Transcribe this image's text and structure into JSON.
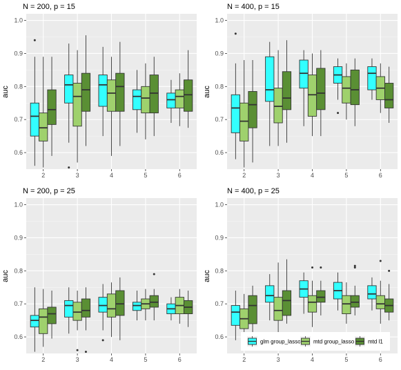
{
  "chart_data": [
    {
      "type": "boxplot",
      "title": "N = 200, p = 15",
      "ylabel": "auc",
      "ylim": [
        0.55,
        1.02
      ],
      "yticks": [
        0.6,
        0.7,
        0.8,
        0.9,
        1.0
      ],
      "categories": [
        "2",
        "3",
        "4",
        "5",
        "6"
      ],
      "series": [
        {
          "name": "glm group_lasso",
          "boxes": [
            {
              "whisker_low": 0.56,
              "q1": 0.65,
              "median": 0.71,
              "q3": 0.75,
              "whisker_high": 0.89,
              "outliers": [
                0.94
              ]
            },
            {
              "whisker_low": 0.63,
              "q1": 0.75,
              "median": 0.805,
              "q3": 0.835,
              "whisker_high": 0.93,
              "outliers": [
                0.555
              ]
            },
            {
              "whisker_low": 0.65,
              "q1": 0.74,
              "median": 0.805,
              "q3": 0.835,
              "whisker_high": 0.92,
              "outliers": []
            },
            {
              "whisker_low": 0.66,
              "q1": 0.73,
              "median": 0.77,
              "q3": 0.79,
              "whisker_high": 0.85,
              "outliers": []
            },
            {
              "whisker_low": 0.69,
              "q1": 0.735,
              "median": 0.76,
              "q3": 0.78,
              "whisker_high": 0.82,
              "outliers": []
            }
          ]
        },
        {
          "name": "mtd group_lasso",
          "boxes": [
            {
              "whisker_low": 0.555,
              "q1": 0.635,
              "median": 0.675,
              "q3": 0.72,
              "whisker_high": 0.89,
              "outliers": []
            },
            {
              "whisker_low": 0.57,
              "q1": 0.68,
              "median": 0.77,
              "q3": 0.81,
              "whisker_high": 0.91,
              "outliers": []
            },
            {
              "whisker_low": 0.59,
              "q1": 0.725,
              "median": 0.78,
              "q3": 0.82,
              "whisker_high": 0.89,
              "outliers": []
            },
            {
              "whisker_low": 0.64,
              "q1": 0.72,
              "median": 0.765,
              "q3": 0.8,
              "whisker_high": 0.87,
              "outliers": []
            },
            {
              "whisker_low": 0.68,
              "q1": 0.735,
              "median": 0.77,
              "q3": 0.79,
              "whisker_high": 0.84,
              "outliers": []
            }
          ]
        },
        {
          "name": "mtd l1",
          "boxes": [
            {
              "whisker_low": 0.59,
              "q1": 0.685,
              "median": 0.73,
              "q3": 0.79,
              "whisker_high": 0.89,
              "outliers": []
            },
            {
              "whisker_low": 0.62,
              "q1": 0.725,
              "median": 0.79,
              "q3": 0.84,
              "whisker_high": 0.955,
              "outliers": []
            },
            {
              "whisker_low": 0.62,
              "q1": 0.725,
              "median": 0.8,
              "q3": 0.84,
              "whisker_high": 0.935,
              "outliers": []
            },
            {
              "whisker_low": 0.65,
              "q1": 0.72,
              "median": 0.78,
              "q3": 0.835,
              "whisker_high": 0.89,
              "outliers": []
            },
            {
              "whisker_low": 0.675,
              "q1": 0.725,
              "median": 0.775,
              "q3": 0.82,
              "whisker_high": 0.91,
              "outliers": []
            }
          ]
        }
      ]
    },
    {
      "type": "boxplot",
      "title": "N = 400, p = 15",
      "ylabel": "auc",
      "ylim": [
        0.55,
        1.02
      ],
      "yticks": [
        0.6,
        0.7,
        0.8,
        0.9,
        1.0
      ],
      "categories": [
        "2",
        "3",
        "4",
        "5",
        "6"
      ],
      "series": [
        {
          "name": "glm group_lasso",
          "boxes": [
            {
              "whisker_low": 0.58,
              "q1": 0.66,
              "median": 0.735,
              "q3": 0.775,
              "whisker_high": 0.87,
              "outliers": [
                0.96
              ]
            },
            {
              "whisker_low": 0.62,
              "q1": 0.755,
              "median": 0.79,
              "q3": 0.89,
              "whisker_high": 0.935,
              "outliers": []
            },
            {
              "whisker_low": 0.68,
              "q1": 0.795,
              "median": 0.84,
              "q3": 0.88,
              "whisker_high": 0.91,
              "outliers": []
            },
            {
              "whisker_low": 0.76,
              "q1": 0.81,
              "median": 0.835,
              "q3": 0.86,
              "whisker_high": 0.885,
              "outliers": [
                0.72
              ]
            },
            {
              "whisker_low": 0.76,
              "q1": 0.79,
              "median": 0.84,
              "q3": 0.86,
              "whisker_high": 0.885,
              "outliers": []
            }
          ]
        },
        {
          "name": "mtd group_lasso",
          "boxes": [
            {
              "whisker_low": 0.555,
              "q1": 0.635,
              "median": 0.695,
              "q3": 0.75,
              "whisker_high": 0.88,
              "outliers": []
            },
            {
              "whisker_low": 0.62,
              "q1": 0.69,
              "median": 0.74,
              "q3": 0.795,
              "whisker_high": 0.91,
              "outliers": []
            },
            {
              "whisker_low": 0.65,
              "q1": 0.71,
              "median": 0.775,
              "q3": 0.835,
              "whisker_high": 0.9,
              "outliers": []
            },
            {
              "whisker_low": 0.7,
              "q1": 0.75,
              "median": 0.795,
              "q3": 0.83,
              "whisker_high": 0.87,
              "outliers": []
            },
            {
              "whisker_low": 0.72,
              "q1": 0.76,
              "median": 0.795,
              "q3": 0.83,
              "whisker_high": 0.87,
              "outliers": []
            }
          ]
        },
        {
          "name": "mtd l1",
          "boxes": [
            {
              "whisker_low": 0.57,
              "q1": 0.675,
              "median": 0.745,
              "q3": 0.785,
              "whisker_high": 0.88,
              "outliers": []
            },
            {
              "whisker_low": 0.63,
              "q1": 0.73,
              "median": 0.765,
              "q3": 0.845,
              "whisker_high": 0.94,
              "outliers": []
            },
            {
              "whisker_low": 0.65,
              "q1": 0.73,
              "median": 0.78,
              "q3": 0.855,
              "whisker_high": 0.91,
              "outliers": []
            },
            {
              "whisker_low": 0.68,
              "q1": 0.745,
              "median": 0.79,
              "q3": 0.85,
              "whisker_high": 0.885,
              "outliers": []
            },
            {
              "whisker_low": 0.69,
              "q1": 0.735,
              "median": 0.76,
              "q3": 0.81,
              "whisker_high": 0.86,
              "outliers": []
            }
          ]
        }
      ]
    },
    {
      "type": "boxplot",
      "title": "N = 200, p = 25",
      "ylabel": "auc",
      "ylim": [
        0.55,
        1.02
      ],
      "yticks": [
        0.6,
        0.7,
        0.8,
        0.9,
        1.0
      ],
      "categories": [
        "2",
        "3",
        "4",
        "5",
        "6"
      ],
      "series": [
        {
          "name": "glm group_lasso",
          "boxes": [
            {
              "whisker_low": 0.555,
              "q1": 0.63,
              "median": 0.65,
              "q3": 0.665,
              "whisker_high": 0.75,
              "outliers": []
            },
            {
              "whisker_low": 0.61,
              "q1": 0.66,
              "median": 0.695,
              "q3": 0.71,
              "whisker_high": 0.75,
              "outliers": []
            },
            {
              "whisker_low": 0.62,
              "q1": 0.675,
              "median": 0.695,
              "q3": 0.72,
              "whisker_high": 0.76,
              "outliers": [
                0.59
              ]
            },
            {
              "whisker_low": 0.65,
              "q1": 0.68,
              "median": 0.695,
              "q3": 0.705,
              "whisker_high": 0.74,
              "outliers": []
            },
            {
              "whisker_low": 0.65,
              "q1": 0.67,
              "median": 0.685,
              "q3": 0.7,
              "whisker_high": 0.72,
              "outliers": []
            }
          ]
        },
        {
          "name": "mtd group_lasso",
          "boxes": [
            {
              "whisker_low": 0.57,
              "q1": 0.61,
              "median": 0.66,
              "q3": 0.685,
              "whisker_high": 0.745,
              "outliers": []
            },
            {
              "whisker_low": 0.62,
              "q1": 0.65,
              "median": 0.675,
              "q3": 0.705,
              "whisker_high": 0.74,
              "outliers": [
                0.56
              ]
            },
            {
              "whisker_low": 0.6,
              "q1": 0.66,
              "median": 0.685,
              "q3": 0.73,
              "whisker_high": 0.765,
              "outliers": []
            },
            {
              "whisker_low": 0.65,
              "q1": 0.685,
              "median": 0.7,
              "q3": 0.715,
              "whisker_high": 0.745,
              "outliers": []
            },
            {
              "whisker_low": 0.64,
              "q1": 0.67,
              "median": 0.695,
              "q3": 0.72,
              "whisker_high": 0.745,
              "outliers": []
            }
          ]
        },
        {
          "name": "mtd l1",
          "boxes": [
            {
              "whisker_low": 0.595,
              "q1": 0.64,
              "median": 0.67,
              "q3": 0.69,
              "whisker_high": 0.74,
              "outliers": []
            },
            {
              "whisker_low": 0.62,
              "q1": 0.66,
              "median": 0.68,
              "q3": 0.715,
              "whisker_high": 0.75,
              "outliers": [
                0.555
              ]
            },
            {
              "whisker_low": 0.59,
              "q1": 0.665,
              "median": 0.7,
              "q3": 0.74,
              "whisker_high": 0.78,
              "outliers": []
            },
            {
              "whisker_low": 0.65,
              "q1": 0.69,
              "median": 0.705,
              "q3": 0.725,
              "whisker_high": 0.745,
              "outliers": [
                0.79
              ]
            },
            {
              "whisker_low": 0.63,
              "q1": 0.67,
              "median": 0.69,
              "q3": 0.71,
              "whisker_high": 0.74,
              "outliers": []
            }
          ]
        }
      ]
    },
    {
      "type": "boxplot",
      "title": "N = 400, p = 25",
      "ylabel": "auc",
      "ylim": [
        0.55,
        1.02
      ],
      "yticks": [
        0.6,
        0.7,
        0.8,
        0.9,
        1.0
      ],
      "categories": [
        "2",
        "3",
        "4",
        "5",
        "6"
      ],
      "legend": {
        "position": "bottom-inside"
      },
      "series": [
        {
          "name": "glm group_lasso",
          "boxes": [
            {
              "whisker_low": 0.59,
              "q1": 0.635,
              "median": 0.675,
              "q3": 0.695,
              "whisker_high": 0.74,
              "outliers": []
            },
            {
              "whisker_low": 0.65,
              "q1": 0.705,
              "median": 0.725,
              "q3": 0.755,
              "whisker_high": 0.79,
              "outliers": []
            },
            {
              "whisker_low": 0.67,
              "q1": 0.72,
              "median": 0.745,
              "q3": 0.77,
              "whisker_high": 0.795,
              "outliers": []
            },
            {
              "whisker_low": 0.68,
              "q1": 0.715,
              "median": 0.74,
              "q3": 0.765,
              "whisker_high": 0.795,
              "outliers": []
            },
            {
              "whisker_low": 0.68,
              "q1": 0.715,
              "median": 0.73,
              "q3": 0.755,
              "whisker_high": 0.78,
              "outliers": []
            }
          ]
        },
        {
          "name": "mtd group_lasso",
          "boxes": [
            {
              "whisker_low": 0.58,
              "q1": 0.625,
              "median": 0.655,
              "q3": 0.685,
              "whisker_high": 0.73,
              "outliers": []
            },
            {
              "whisker_low": 0.61,
              "q1": 0.65,
              "median": 0.68,
              "q3": 0.72,
              "whisker_high": 0.825,
              "outliers": []
            },
            {
              "whisker_low": 0.63,
              "q1": 0.675,
              "median": 0.705,
              "q3": 0.725,
              "whisker_high": 0.77,
              "outliers": [
                0.81
              ]
            },
            {
              "whisker_low": 0.64,
              "q1": 0.67,
              "median": 0.7,
              "q3": 0.725,
              "whisker_high": 0.765,
              "outliers": []
            },
            {
              "whisker_low": 0.64,
              "q1": 0.685,
              "median": 0.7,
              "q3": 0.725,
              "whisker_high": 0.77,
              "outliers": [
                0.83
              ]
            }
          ]
        },
        {
          "name": "mtd l1",
          "boxes": [
            {
              "whisker_low": 0.61,
              "q1": 0.64,
              "median": 0.695,
              "q3": 0.725,
              "whisker_high": 0.755,
              "outliers": []
            },
            {
              "whisker_low": 0.64,
              "q1": 0.665,
              "median": 0.71,
              "q3": 0.74,
              "whisker_high": 0.835,
              "outliers": []
            },
            {
              "whisker_low": 0.665,
              "q1": 0.705,
              "median": 0.72,
              "q3": 0.74,
              "whisker_high": 0.77,
              "outliers": [
                0.81
              ]
            },
            {
              "whisker_low": 0.665,
              "q1": 0.69,
              "median": 0.705,
              "q3": 0.725,
              "whisker_high": 0.755,
              "outliers": [
                0.81,
                0.815
              ]
            },
            {
              "whisker_low": 0.65,
              "q1": 0.675,
              "median": 0.695,
              "q3": 0.715,
              "whisker_high": 0.76,
              "outliers": [
                0.8
              ]
            }
          ]
        }
      ]
    }
  ],
  "legend": {
    "items": [
      {
        "label": "glm group_lasso",
        "color": "#33ffff"
      },
      {
        "label": "mtd group_lasso",
        "color": "#9fd16d"
      },
      {
        "label": "mtd l1",
        "color": "#5a8f34"
      }
    ]
  },
  "colors": {
    "panel_bg": "#ebebeb",
    "grid_major": "#ffffff",
    "box_outline": "#333333"
  }
}
